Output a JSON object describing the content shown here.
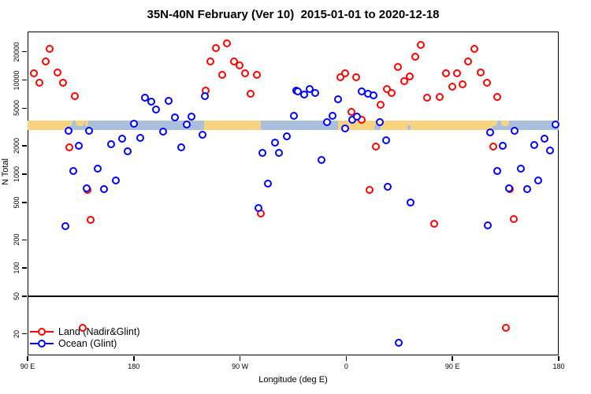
{
  "title": "35N-40N February (Ver 10)  2015-01-01 to 2020-12-18",
  "y_axis": {
    "label": "N Total",
    "ticks": [
      20,
      50,
      100,
      200,
      500,
      1000,
      2000,
      5000,
      10000,
      20000
    ]
  },
  "x_axis": {
    "label": "Longitude (deg E)",
    "ticks": [
      {
        "deg": 90,
        "label": "90 E"
      },
      {
        "deg": 180,
        "label": "180"
      },
      {
        "deg": 270,
        "label": "90 W"
      },
      {
        "deg": 360,
        "label": "0"
      },
      {
        "deg": 450,
        "label": "90 E"
      },
      {
        "deg": 540,
        "label": "180"
      }
    ]
  },
  "legend": {
    "items": [
      {
        "label": "Land (Nadir&Glint)",
        "color": "#ff0000"
      },
      {
        "label": "Ocean (Glint)",
        "color": "#0000ff"
      }
    ]
  },
  "chart_data": {
    "type": "scatter",
    "title": "35N-40N February (Ver 10)  2015-01-01 to 2020-12-18",
    "xlabel": "Longitude (deg E)",
    "ylabel": "N Total",
    "y_scale": "log",
    "ylim": [
      11.8,
      32800
    ],
    "x_axis_wrap_deg": [
      90,
      540
    ],
    "hline_y": 50,
    "map_strip": {
      "comment": "land/ocean map band drawn across plot near N=3300",
      "n_range": [
        2920,
        3710
      ],
      "land_color": "#f8d481",
      "ocean_color": "#a9bfdb",
      "land_segments_deg": [
        [
          90,
          123.5
        ],
        [
          239.5,
          287.5
        ],
        [
          353,
          484
        ]
      ],
      "island_patches_deg": [
        [
          121,
          128
        ],
        [
          131,
          138
        ],
        [
          138.5,
          141.5
        ],
        [
          482.5,
          488
        ],
        [
          491,
          498
        ]
      ],
      "ocean_gaps_deg": [
        [
          384,
          389
        ],
        [
          411.5,
          414.5
        ]
      ]
    },
    "series": [
      {
        "name": "Land (Nadir&Glint)",
        "color": "#ff0000",
        "marker": "open-circle",
        "points": [
          [
            109,
            21300
          ],
          [
            105.5,
            15700
          ],
          [
            95.5,
            11800
          ],
          [
            115.5,
            12000
          ],
          [
            100,
            9350
          ],
          [
            120,
            9350
          ],
          [
            130,
            6700
          ],
          [
            125.5,
            1930
          ],
          [
            140.5,
            680
          ],
          [
            143.5,
            325
          ],
          [
            136.5,
            23
          ],
          [
            249.5,
            21700
          ],
          [
            259,
            24400
          ],
          [
            245,
            15700
          ],
          [
            265,
            15700
          ],
          [
            269.5,
            14300
          ],
          [
            255,
            11300
          ],
          [
            274.5,
            11900
          ],
          [
            284.5,
            11300
          ],
          [
            241,
            7700
          ],
          [
            279,
            7100
          ],
          [
            287.5,
            380
          ],
          [
            355,
            10800
          ],
          [
            359,
            11900
          ],
          [
            368.5,
            10700
          ],
          [
            364.5,
            4560
          ],
          [
            373,
            3770
          ],
          [
            389,
            5430
          ],
          [
            394.5,
            7990
          ],
          [
            398.5,
            7270
          ],
          [
            404,
            13700
          ],
          [
            409,
            9690
          ],
          [
            414,
            10900
          ],
          [
            418.5,
            17600
          ],
          [
            423,
            23500
          ],
          [
            428.5,
            6470
          ],
          [
            434.5,
            295
          ],
          [
            385,
            1950
          ],
          [
            380,
            680
          ],
          [
            439,
            6560
          ],
          [
            444.5,
            11900
          ],
          [
            450,
            8480
          ],
          [
            454,
            11900
          ],
          [
            458.5,
            8990
          ],
          [
            463,
            15700
          ],
          [
            468.5,
            21300
          ],
          [
            474,
            12100
          ],
          [
            479,
            9350
          ],
          [
            484.5,
            1960
          ],
          [
            488,
            6560
          ],
          [
            498.5,
            690
          ],
          [
            502,
            330
          ],
          [
            495.5,
            23
          ]
        ]
      },
      {
        "name": "Ocean (Glint)",
        "color": "#0000ff",
        "marker": "open-circle",
        "points": [
          [
            122,
            280
          ],
          [
            124.5,
            2900
          ],
          [
            128.5,
            1080
          ],
          [
            133.5,
            1990
          ],
          [
            140,
            705
          ],
          [
            142,
            2900
          ],
          [
            149.5,
            1140
          ],
          [
            154.5,
            690
          ],
          [
            161,
            2070
          ],
          [
            165,
            855
          ],
          [
            170,
            2400
          ],
          [
            175,
            1740
          ],
          [
            180,
            3420
          ],
          [
            185.5,
            2420
          ],
          [
            189.5,
            6470
          ],
          [
            195,
            5880
          ],
          [
            199,
            4850
          ],
          [
            205,
            2850
          ],
          [
            209.5,
            5970
          ],
          [
            215,
            4000
          ],
          [
            220,
            1920
          ],
          [
            225,
            3350
          ],
          [
            229,
            4080
          ],
          [
            238,
            2610
          ],
          [
            240,
            6770
          ],
          [
            285.5,
            435
          ],
          [
            289,
            1680
          ],
          [
            293.5,
            790
          ],
          [
            299.5,
            2160
          ],
          [
            303,
            1680
          ],
          [
            309.5,
            2520
          ],
          [
            315.5,
            4150
          ],
          [
            317.5,
            7710
          ],
          [
            319,
            7560
          ],
          [
            324.5,
            7000
          ],
          [
            329,
            7990
          ],
          [
            333.5,
            7270
          ],
          [
            339,
            1410
          ],
          [
            343.5,
            3560
          ],
          [
            348.5,
            4150
          ],
          [
            353,
            6300
          ],
          [
            359,
            3050
          ],
          [
            365,
            3770
          ],
          [
            369,
            4080
          ],
          [
            373,
            7560
          ],
          [
            378.5,
            7130
          ],
          [
            383,
            6880
          ],
          [
            388.5,
            3560
          ],
          [
            393.5,
            2280
          ],
          [
            395,
            730
          ],
          [
            404.5,
            16
          ],
          [
            414.5,
            500
          ],
          [
            480,
            285
          ],
          [
            482,
            2790
          ],
          [
            488,
            1070
          ],
          [
            492.5,
            1990
          ],
          [
            498,
            705
          ],
          [
            502.5,
            2870
          ],
          [
            508,
            1140
          ],
          [
            513.5,
            690
          ],
          [
            519.5,
            2030
          ],
          [
            522.5,
            855
          ],
          [
            528,
            2400
          ],
          [
            532.5,
            1770
          ],
          [
            537,
            3370
          ]
        ]
      }
    ]
  }
}
